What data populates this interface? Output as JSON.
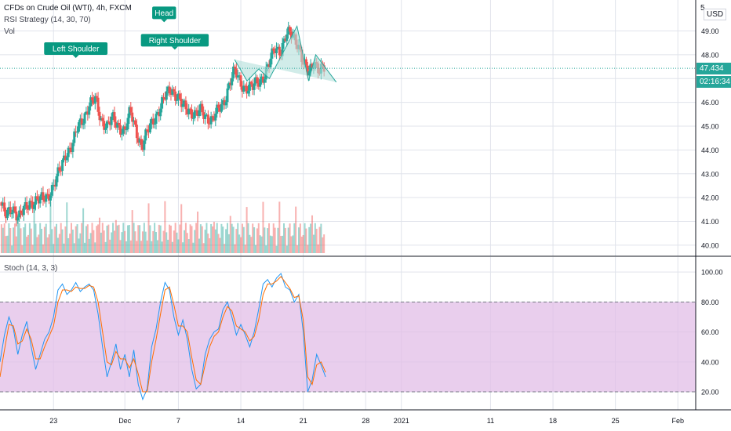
{
  "header": {
    "symbol": "CFDs on Crude Oil (WTI), 4h, FXCM",
    "strategy": "RSI Strategy (14, 30, 70)",
    "vol": "Vol",
    "currency": "USD",
    "axis_top_label": "5"
  },
  "price_tags": {
    "last": "47.434",
    "countdown": "02:16:34"
  },
  "colors": {
    "up": "#26a69a",
    "down": "#ef5350",
    "pattern_fill": "#b2dfdb",
    "pattern_stroke": "#26a69a",
    "label_bg": "#089981",
    "stoch_k": "#2196f3",
    "stoch_d": "#ff6d00",
    "band_fill": "#e1bee7",
    "grid": "#e0e3eb"
  },
  "annotations": [
    {
      "text": "Left Shoulder",
      "x": 8.5,
      "y": 47.8
    },
    {
      "text": "Head",
      "x": 18.4,
      "y": 49.3
    },
    {
      "text": "Right Shoulder",
      "x": 19.6,
      "y": 48.15
    }
  ],
  "stoch_legend": "Stoch (14, 3, 3)",
  "chart_data": [
    {
      "type": "candlestick",
      "title": "CFDs on Crude Oil (WTI), 4h, FXCM",
      "x_unit": "days since Nov 17 2020",
      "xlim": [
        0,
        78
      ],
      "ylim": [
        39.8,
        50.3
      ],
      "x_ticks": [
        {
          "label": "23",
          "x": 6
        },
        {
          "label": "Dec",
          "x": 14
        },
        {
          "label": "7",
          "x": 20
        },
        {
          "label": "14",
          "x": 27
        },
        {
          "label": "21",
          "x": 34
        },
        {
          "label": "28",
          "x": 41
        },
        {
          "label": "2021",
          "x": 45
        },
        {
          "label": "11",
          "x": 55
        },
        {
          "label": "18",
          "x": 62
        },
        {
          "label": "25",
          "x": 69
        },
        {
          "label": "Feb",
          "x": 76
        }
      ],
      "y_ticks": [
        40.0,
        41.0,
        42.0,
        43.0,
        44.0,
        45.0,
        46.0,
        47.0,
        48.0,
        49.0
      ],
      "close_path": [
        [
          0,
          41.8
        ],
        [
          0.7,
          41.2
        ],
        [
          1.4,
          41.6
        ],
        [
          2.1,
          41.2
        ],
        [
          2.8,
          41.5
        ],
        [
          3.4,
          41.8
        ],
        [
          4.1,
          41.9
        ],
        [
          4.8,
          41.9
        ],
        [
          5.4,
          42.1
        ],
        [
          6.1,
          42.6
        ],
        [
          6.8,
          43.2
        ],
        [
          7.4,
          43.9
        ],
        [
          8.1,
          44.2
        ],
        [
          8.7,
          44.9
        ],
        [
          9.4,
          45.4
        ],
        [
          10.0,
          45.9
        ],
        [
          10.7,
          46.1
        ],
        [
          11.3,
          45.3
        ],
        [
          12.0,
          45.0
        ],
        [
          12.6,
          45.3
        ],
        [
          13.3,
          45.0
        ],
        [
          14.0,
          44.8
        ],
        [
          14.6,
          45.6
        ],
        [
          15.3,
          44.8
        ],
        [
          15.9,
          44.1
        ],
        [
          16.6,
          44.8
        ],
        [
          17.2,
          45.3
        ],
        [
          17.9,
          45.7
        ],
        [
          18.6,
          46.3
        ],
        [
          19.2,
          46.6
        ],
        [
          19.9,
          46.2
        ],
        [
          20.5,
          45.8
        ],
        [
          21.2,
          45.7
        ],
        [
          21.8,
          45.5
        ],
        [
          22.5,
          45.6
        ],
        [
          23.1,
          45.4
        ],
        [
          23.8,
          45.3
        ],
        [
          24.4,
          45.6
        ],
        [
          25.1,
          46.0
        ],
        [
          25.7,
          46.8
        ],
        [
          26.3,
          47.3
        ],
        [
          27.0,
          46.8
        ],
        [
          27.6,
          46.6
        ],
        [
          28.3,
          46.6
        ],
        [
          28.9,
          46.9
        ],
        [
          29.6,
          47.1
        ],
        [
          30.2,
          47.6
        ],
        [
          30.8,
          48.3
        ],
        [
          31.5,
          48.2
        ],
        [
          32.1,
          48.8
        ],
        [
          32.7,
          48.9
        ],
        [
          33.4,
          48.5
        ],
        [
          34.0,
          47.6
        ],
        [
          34.6,
          47.2
        ],
        [
          35.2,
          47.8
        ],
        [
          35.8,
          47.3
        ],
        [
          36.4,
          47.4
        ]
      ],
      "head_and_shoulders": [
        {
          "x": 26.3,
          "y": 47.8
        },
        {
          "x": 27.7,
          "y": 46.9
        },
        {
          "x": 29.0,
          "y": 47.4
        },
        {
          "x": 30.2,
          "y": 47.0
        },
        {
          "x": 33.3,
          "y": 49.2
        },
        {
          "x": 34.6,
          "y": 46.9
        },
        {
          "x": 35.4,
          "y": 48.0
        },
        {
          "x": 37.7,
          "y": 46.85
        }
      ],
      "volume_ylim": [
        0,
        3.8
      ],
      "last_price": 47.434
    },
    {
      "type": "line",
      "title": "Stoch (14, 3, 3)",
      "xlim": [
        0,
        78
      ],
      "ylim": [
        8,
        110
      ],
      "y_ticks": [
        20.0,
        40.0,
        60.0,
        80.0,
        100.0
      ],
      "bands": [
        20,
        80
      ],
      "series": [
        {
          "name": "%K",
          "points": [
            [
              0,
              40
            ],
            [
              0.5,
              58
            ],
            [
              1,
              70
            ],
            [
              1.5,
              62
            ],
            [
              2,
              45
            ],
            [
              2.5,
              58
            ],
            [
              3,
              67
            ],
            [
              3.5,
              50
            ],
            [
              4,
              35
            ],
            [
              4.5,
              45
            ],
            [
              5,
              55
            ],
            [
              5.5,
              60
            ],
            [
              6,
              70
            ],
            [
              6.5,
              88
            ],
            [
              7,
              92
            ],
            [
              7.5,
              85
            ],
            [
              8,
              88
            ],
            [
              8.5,
              93
            ],
            [
              9,
              87
            ],
            [
              9.5,
              90
            ],
            [
              10,
              92
            ],
            [
              10.5,
              88
            ],
            [
              11,
              72
            ],
            [
              11.5,
              50
            ],
            [
              12,
              30
            ],
            [
              12.5,
              40
            ],
            [
              13,
              52
            ],
            [
              13.5,
              35
            ],
            [
              14,
              45
            ],
            [
              14.5,
              30
            ],
            [
              15,
              48
            ],
            [
              15.5,
              25
            ],
            [
              16,
              15
            ],
            [
              16.5,
              22
            ],
            [
              17,
              50
            ],
            [
              17.5,
              62
            ],
            [
              18,
              80
            ],
            [
              18.5,
              93
            ],
            [
              19,
              88
            ],
            [
              19.5,
              70
            ],
            [
              20,
              58
            ],
            [
              20.5,
              68
            ],
            [
              21,
              55
            ],
            [
              21.5,
              35
            ],
            [
              22,
              22
            ],
            [
              22.5,
              25
            ],
            [
              23,
              45
            ],
            [
              23.5,
              55
            ],
            [
              24,
              60
            ],
            [
              24.5,
              62
            ],
            [
              25,
              75
            ],
            [
              25.5,
              80
            ],
            [
              26,
              70
            ],
            [
              26.5,
              58
            ],
            [
              27,
              65
            ],
            [
              27.5,
              58
            ],
            [
              28,
              50
            ],
            [
              28.5,
              60
            ],
            [
              29,
              75
            ],
            [
              29.5,
              92
            ],
            [
              30,
              95
            ],
            [
              30.5,
              90
            ],
            [
              31,
              96
            ],
            [
              31.5,
              99
            ],
            [
              32,
              90
            ],
            [
              32.5,
              88
            ],
            [
              33,
              80
            ],
            [
              33.5,
              85
            ],
            [
              34,
              60
            ],
            [
              34.5,
              20
            ],
            [
              35,
              28
            ],
            [
              35.5,
              45
            ],
            [
              36,
              38
            ],
            [
              36.5,
              30
            ]
          ]
        },
        {
          "name": "%D",
          "points": [
            [
              0,
              30
            ],
            [
              0.5,
              48
            ],
            [
              1,
              65
            ],
            [
              1.5,
              64
            ],
            [
              2,
              52
            ],
            [
              2.5,
              54
            ],
            [
              3,
              62
            ],
            [
              3.5,
              55
            ],
            [
              4,
              42
            ],
            [
              4.5,
              42
            ],
            [
              5,
              50
            ],
            [
              5.5,
              57
            ],
            [
              6,
              64
            ],
            [
              6.5,
              80
            ],
            [
              7,
              88
            ],
            [
              7.5,
              88
            ],
            [
              8,
              87
            ],
            [
              8.5,
              90
            ],
            [
              9,
              89
            ],
            [
              9.5,
              89
            ],
            [
              10,
              91
            ],
            [
              10.5,
              90
            ],
            [
              11,
              80
            ],
            [
              11.5,
              60
            ],
            [
              12,
              40
            ],
            [
              12.5,
              38
            ],
            [
              13,
              47
            ],
            [
              13.5,
              42
            ],
            [
              14,
              42
            ],
            [
              14.5,
              36
            ],
            [
              15,
              42
            ],
            [
              15.5,
              32
            ],
            [
              16,
              20
            ],
            [
              16.5,
              20
            ],
            [
              17,
              40
            ],
            [
              17.5,
              55
            ],
            [
              18,
              72
            ],
            [
              18.5,
              88
            ],
            [
              19,
              90
            ],
            [
              19.5,
              78
            ],
            [
              20,
              64
            ],
            [
              20.5,
              64
            ],
            [
              21,
              60
            ],
            [
              21.5,
              43
            ],
            [
              22,
              28
            ],
            [
              22.5,
              25
            ],
            [
              23,
              38
            ],
            [
              23.5,
              50
            ],
            [
              24,
              57
            ],
            [
              24.5,
              60
            ],
            [
              25,
              70
            ],
            [
              25.5,
              77
            ],
            [
              26,
              74
            ],
            [
              26.5,
              64
            ],
            [
              27,
              62
            ],
            [
              27.5,
              60
            ],
            [
              28,
              54
            ],
            [
              28.5,
              57
            ],
            [
              29,
              68
            ],
            [
              29.5,
              85
            ],
            [
              30,
              92
            ],
            [
              30.5,
              92
            ],
            [
              31,
              94
            ],
            [
              31.5,
              97
            ],
            [
              32,
              93
            ],
            [
              32.5,
              89
            ],
            [
              33,
              83
            ],
            [
              33.5,
              84
            ],
            [
              34,
              68
            ],
            [
              34.5,
              30
            ],
            [
              35,
              25
            ],
            [
              35.5,
              38
            ],
            [
              36,
              40
            ],
            [
              36.5,
              33
            ]
          ]
        }
      ]
    }
  ]
}
